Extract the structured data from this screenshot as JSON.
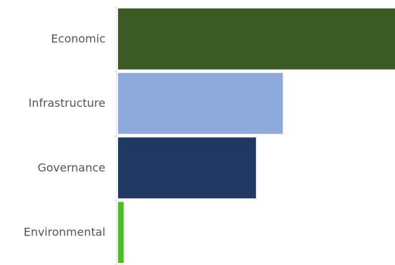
{
  "chart_data": {
    "type": "bar",
    "orientation": "horizontal",
    "categories": [
      "Economic",
      "Infrastructure",
      "Governance",
      "Environmental"
    ],
    "values": [
      100,
      59.5,
      49.8,
      2
    ],
    "colors": [
      "#3c5a24",
      "#8eaadc",
      "#203864",
      "#44c41a"
    ],
    "xlim": [
      0,
      100
    ],
    "title": "",
    "xlabel": "",
    "ylabel": "",
    "grid": false,
    "legend": "none"
  }
}
